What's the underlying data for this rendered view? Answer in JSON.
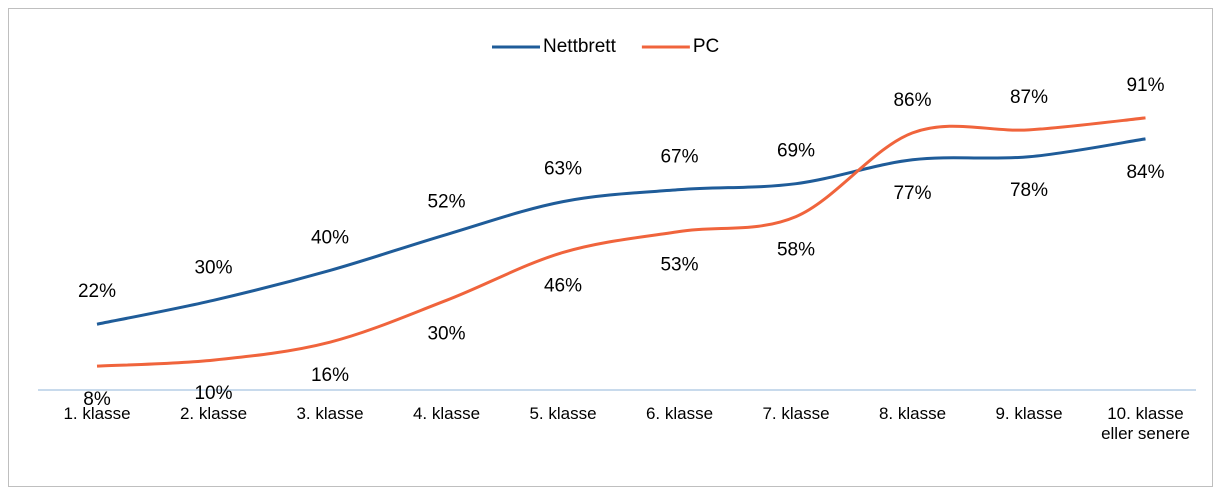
{
  "chart_data": {
    "type": "line",
    "categories": [
      "1. klasse",
      "2. klasse",
      "3. klasse",
      "4. klasse",
      "5. klasse",
      "6. klasse",
      "7. klasse",
      "8. klasse",
      "9. klasse",
      "10. klasse eller senere"
    ],
    "series": [
      {
        "name": "Nettbrett",
        "color": "#1f5c99",
        "values": [
          22,
          30,
          40,
          52,
          63,
          67,
          69,
          77,
          78,
          84
        ],
        "value_labels": [
          "22%",
          "30%",
          "40%",
          "52%",
          "63%",
          "67%",
          "69%",
          "77%",
          "78%",
          "84%"
        ]
      },
      {
        "name": "PC",
        "color": "#f0643c",
        "values": [
          8,
          10,
          16,
          30,
          46,
          53,
          58,
          86,
          87,
          91
        ],
        "value_labels": [
          "8%",
          "10%",
          "16%",
          "30%",
          "46%",
          "53%",
          "58%",
          "86%",
          "87%",
          "91%"
        ]
      }
    ],
    "legend": "top"
  }
}
